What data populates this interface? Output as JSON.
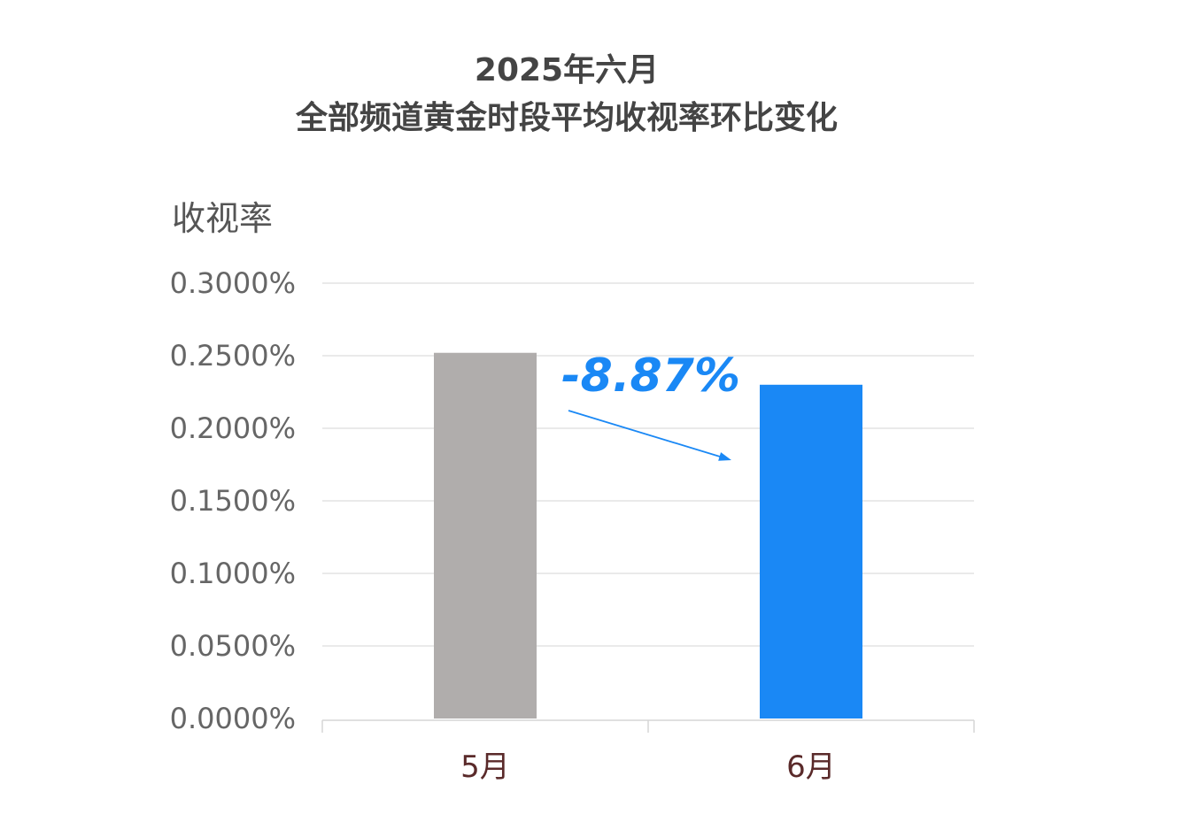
{
  "chart_data": {
    "type": "bar",
    "title": [
      "2025年六月",
      "全部频道黄金时段平均收视率环比变化"
    ],
    "ylabel": "收视率",
    "xlabel": "",
    "categories": [
      "5月",
      "6月"
    ],
    "values": [
      0.252,
      0.23
    ],
    "bar_colors": [
      "#b0adac",
      "#1a88f5"
    ],
    "ylim": [
      0,
      0.3
    ],
    "yticks": [
      "0.0000%",
      "0.0500%",
      "0.1000%",
      "0.1500%",
      "0.2000%",
      "0.2500%",
      "0.3000%"
    ],
    "grid": true,
    "annotation": {
      "text": "-8.87%",
      "color": "#1a88f5"
    }
  }
}
